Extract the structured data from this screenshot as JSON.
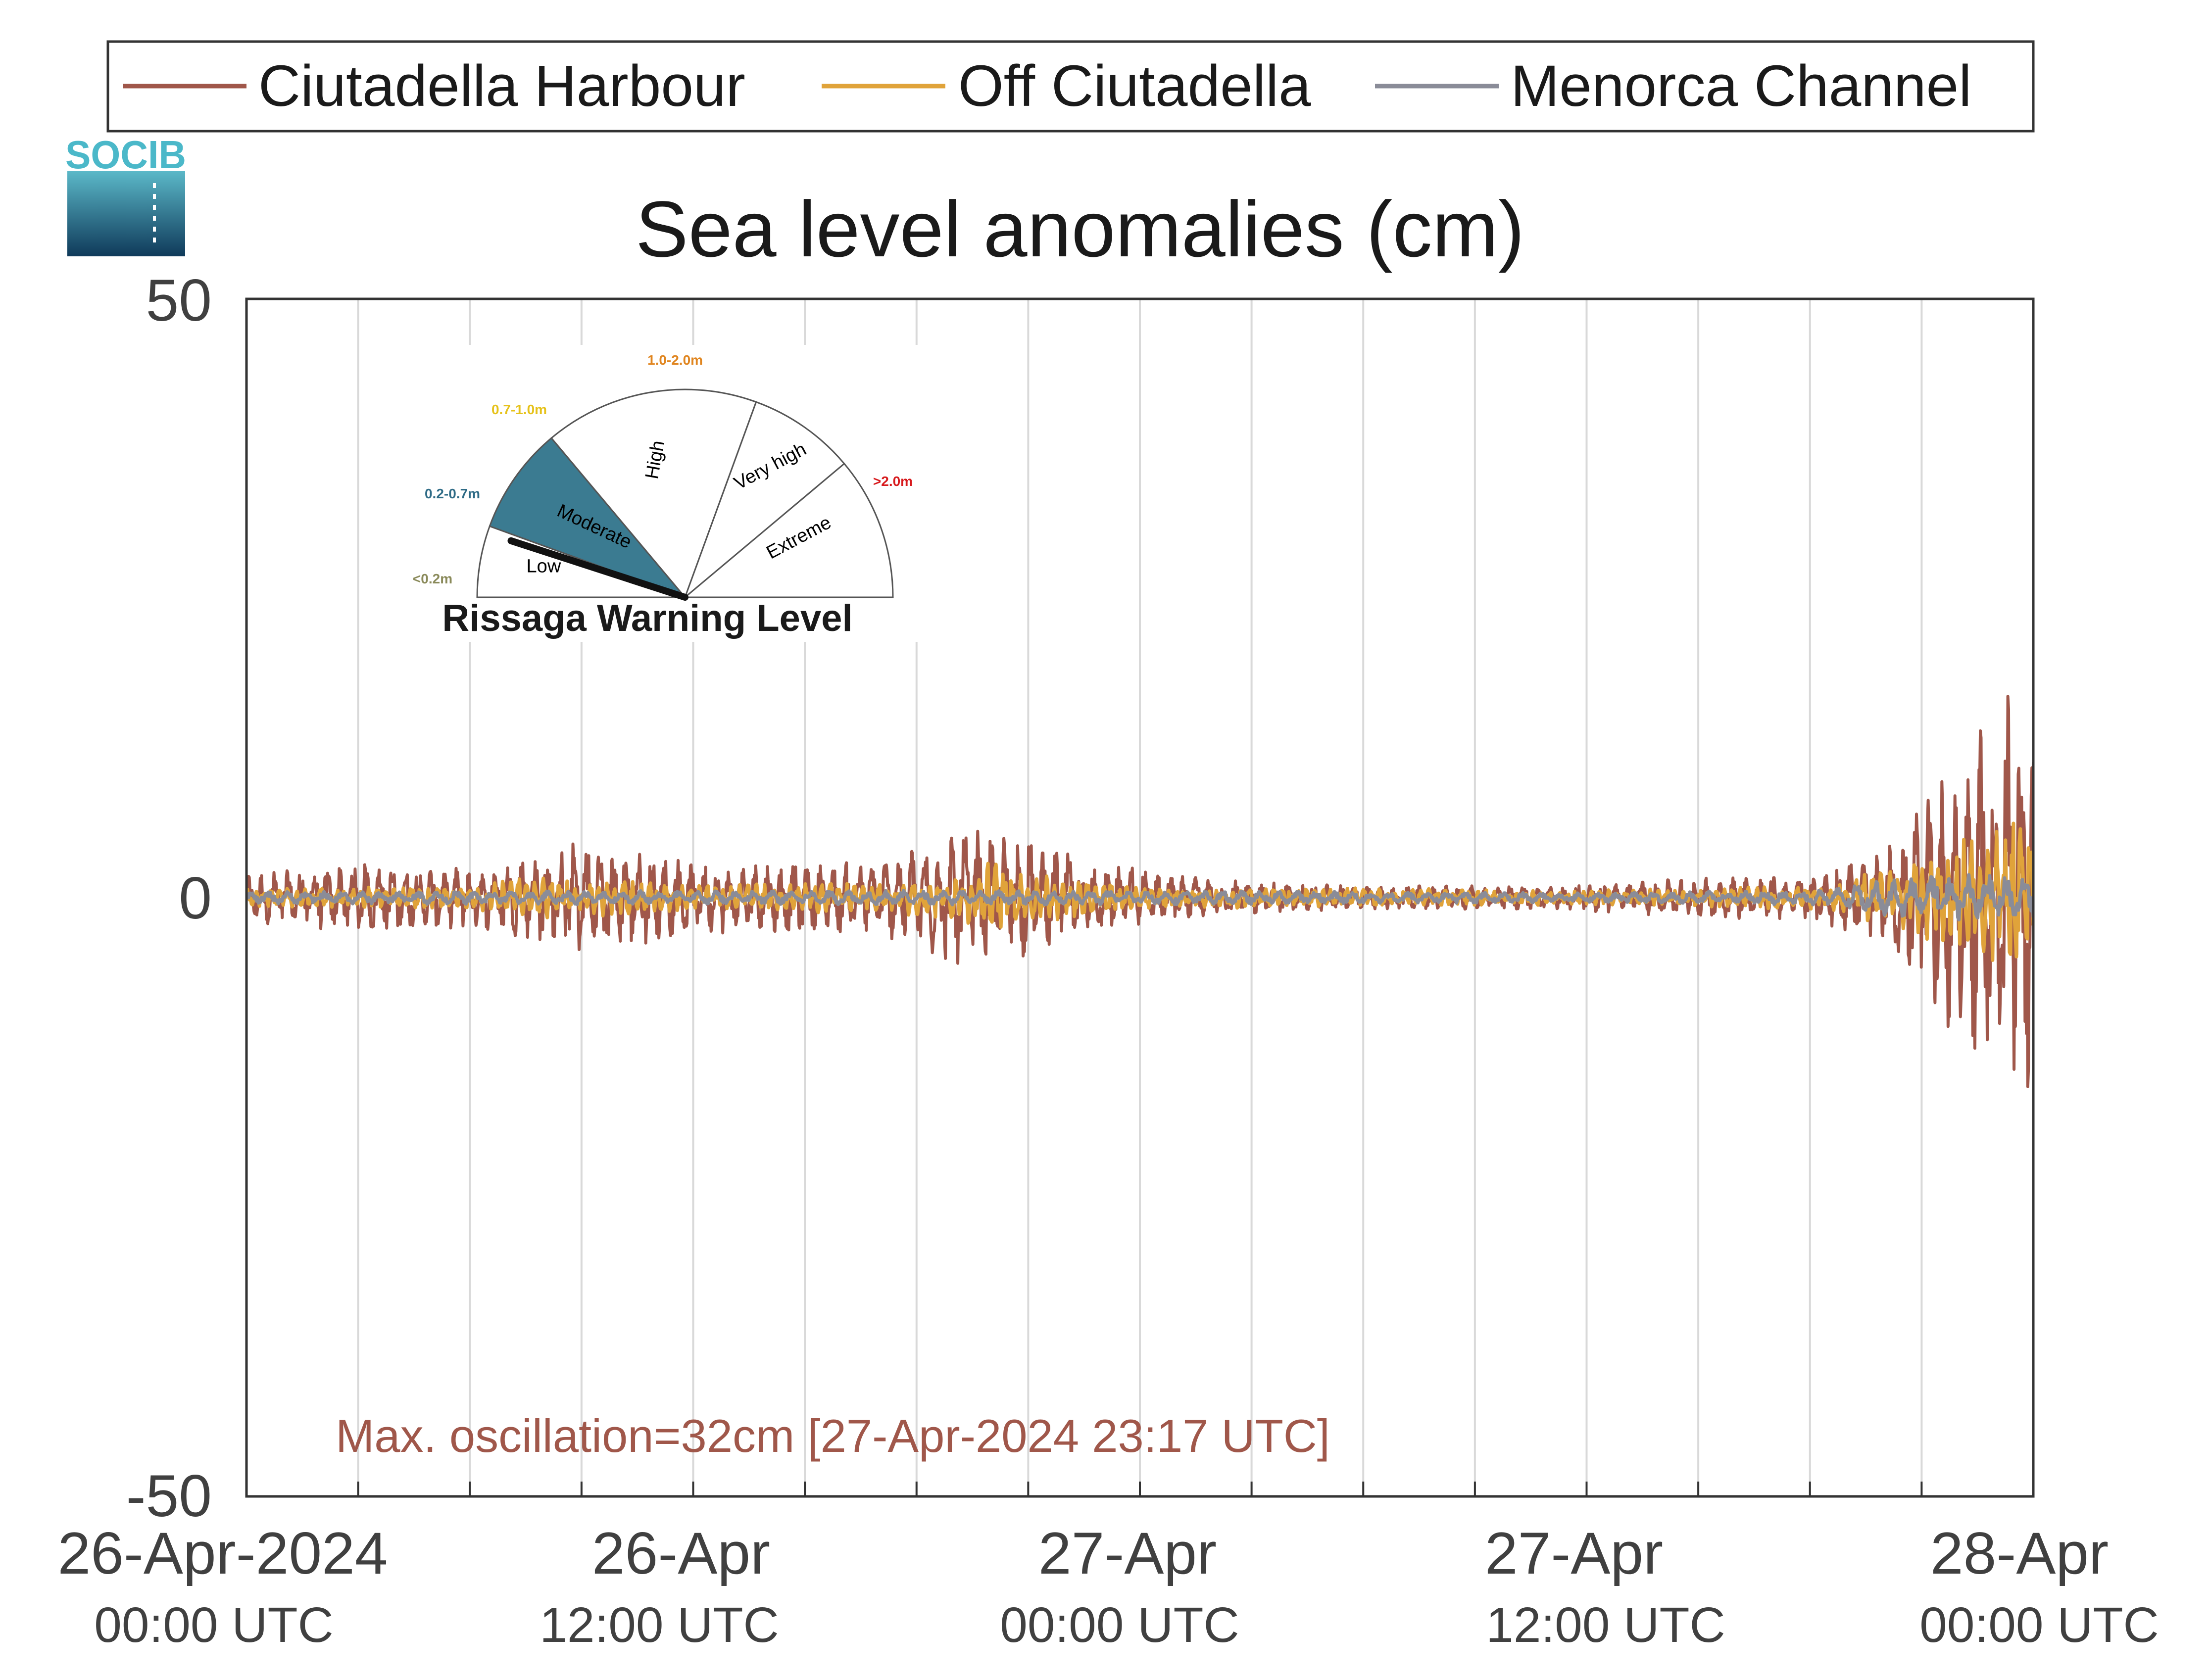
{
  "legend": [
    {
      "name": "Ciutadella Harbour",
      "color": "#a0574a"
    },
    {
      "name": "Off Ciutadella",
      "color": "#e0a33a"
    },
    {
      "name": "Menorca Channel",
      "color": "#8a8c98"
    }
  ],
  "logo": {
    "text": "SOCIB"
  },
  "chart_data": {
    "type": "line",
    "title": "Sea level anomalies (cm)",
    "xlabel": "",
    "ylabel": "",
    "ylim": [
      -50,
      50
    ],
    "yticks": [
      "50",
      "0",
      "-50"
    ],
    "xlim": [
      "2024-04-26 00:00",
      "2024-04-28 00:00"
    ],
    "xticks": [
      {
        "date": "26-Apr-2024",
        "time": "00:00 UTC"
      },
      {
        "date": "26-Apr",
        "time": "12:00 UTC"
      },
      {
        "date": "27-Apr",
        "time": "00:00 UTC"
      },
      {
        "date": "27-Apr",
        "time": "12:00 UTC"
      },
      {
        "date": "28-Apr",
        "time": "00:00 UTC"
      }
    ],
    "grid": "vertical, every 3 hours",
    "legend_position": "top",
    "series": [
      {
        "name": "Ciutadella Harbour",
        "color": "#a0574a",
        "amplitude_envelope": {
          "x_hours": [
            0,
            3,
            6,
            7,
            9,
            12,
            15,
            17,
            19,
            21,
            23,
            26,
            30,
            34,
            38,
            42,
            44,
            46,
            47,
            48
          ],
          "y_cm": [
            2,
            3,
            2.5,
            3,
            5,
            3,
            3,
            3,
            6,
            5,
            3,
            1.5,
            1,
            1,
            1.5,
            2,
            4,
            12,
            18,
            16
          ]
        }
      },
      {
        "name": "Off Ciutadella",
        "color": "#e0a33a",
        "amplitude_envelope": {
          "x_hours": [
            0,
            6,
            8,
            12,
            18,
            20,
            24,
            36,
            42,
            44,
            46,
            48
          ],
          "y_cm": [
            0.8,
            1,
            2,
            1,
            1.5,
            3,
            1,
            0.6,
            1,
            2.5,
            5,
            7
          ]
        }
      },
      {
        "name": "Menorca Channel",
        "color": "#8a8c98",
        "amplitude_envelope": {
          "x_hours": [
            0,
            12,
            24,
            36,
            42,
            44,
            46,
            48
          ],
          "y_cm": [
            0.5,
            0.6,
            0.6,
            0.4,
            0.6,
            1.5,
            2,
            2
          ]
        }
      }
    ],
    "annotation": "Max. oscillation=32cm [27-Apr-2024 23:17 UTC]"
  },
  "gauge": {
    "title": "Rissaga Warning Level",
    "categories": [
      "Low",
      "Moderate",
      "High",
      "Very high",
      "Extreme"
    ],
    "ranges": [
      "<0.2m",
      "0.2-0.7m",
      "0.7-1.0m",
      "1.0-2.0m",
      ">2.0m"
    ],
    "range_colors": [
      "#8a8a5a",
      "#2e6b86",
      "#e6c21a",
      "#e0851f",
      "#d7191c"
    ],
    "active_level": "Moderate",
    "active_color": "#3b7b91",
    "needle_level": 0.2
  }
}
